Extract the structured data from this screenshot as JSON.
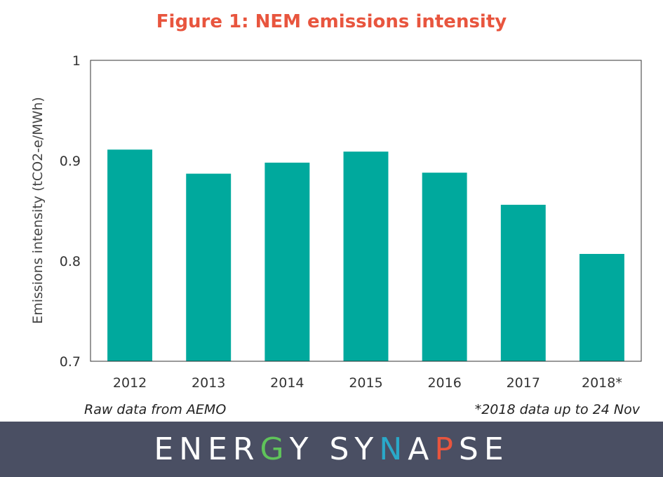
{
  "chart_data": {
    "type": "bar",
    "title": "Figure 1: NEM emissions intensity",
    "xlabel": "",
    "ylabel": "Emissions intensity (tCO2-e/MWh)",
    "categories": [
      "2012",
      "2013",
      "2014",
      "2015",
      "2016",
      "2017",
      "2018*"
    ],
    "values": [
      0.911,
      0.887,
      0.898,
      0.909,
      0.888,
      0.856,
      0.807
    ],
    "ylim": [
      0.7,
      1.0
    ],
    "yticks": [
      "0.7",
      "0.8",
      "0.9",
      "1"
    ],
    "grid": false,
    "legend": "none",
    "bar_color": "#00a99d",
    "title_color": "#e8553e"
  },
  "footer": {
    "source": "Raw data from AEMO",
    "note": "*2018 data up to 24 Nov"
  },
  "banner": {
    "background": "#4a4f63",
    "logo_text": "ENERGY SYNAPSE",
    "logo_letter_colors": [
      "#ffffff",
      "#ffffff",
      "#ffffff",
      "#ffffff",
      "#5fc35a",
      "#ffffff",
      "#ffffff",
      "#ffffff",
      "#ffffff",
      "#2aa9c9",
      "#ffffff",
      "#e8553e",
      "#ffffff",
      "#ffffff"
    ]
  }
}
